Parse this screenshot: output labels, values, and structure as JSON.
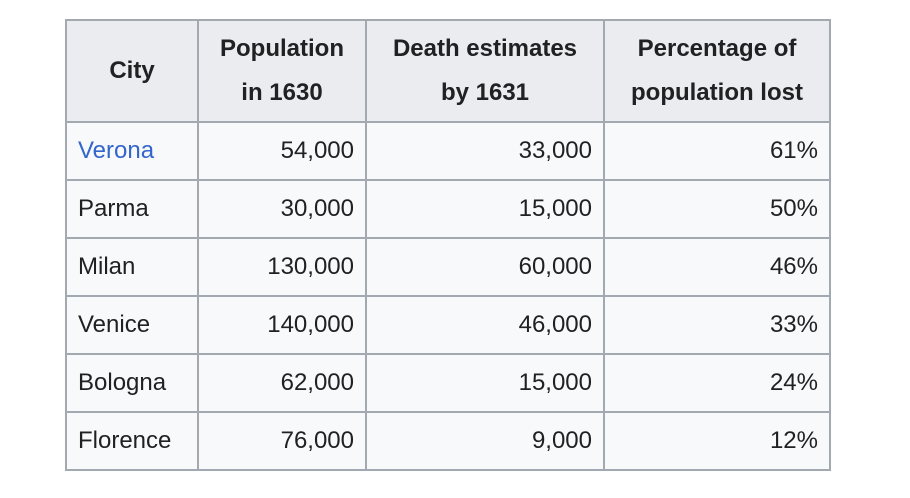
{
  "table": {
    "headers": {
      "city": "City",
      "population_line1": "Population",
      "population_line2": "in 1630",
      "deaths_line1": "Death estimates",
      "deaths_line2": "by 1631",
      "percent_line1": "Percentage of",
      "percent_line2": "population lost"
    },
    "rows": [
      {
        "city": "Verona",
        "population": "54,000",
        "deaths": "33,000",
        "percent": "61%"
      },
      {
        "city": "Parma",
        "population": "30,000",
        "deaths": "15,000",
        "percent": "50%"
      },
      {
        "city": "Milan",
        "population": "130,000",
        "deaths": "60,000",
        "percent": "46%"
      },
      {
        "city": "Venice",
        "population": "140,000",
        "deaths": "46,000",
        "percent": "33%"
      },
      {
        "city": "Bologna",
        "population": "62,000",
        "deaths": "15,000",
        "percent": "24%"
      },
      {
        "city": "Florence",
        "population": "76,000",
        "deaths": "9,000",
        "percent": "12%"
      }
    ]
  },
  "colors": {
    "link": "#3366cc",
    "header_bg": "#eaecf0",
    "cell_bg": "#f8f9fa",
    "border": "#a2a9b1",
    "text": "#202122"
  }
}
